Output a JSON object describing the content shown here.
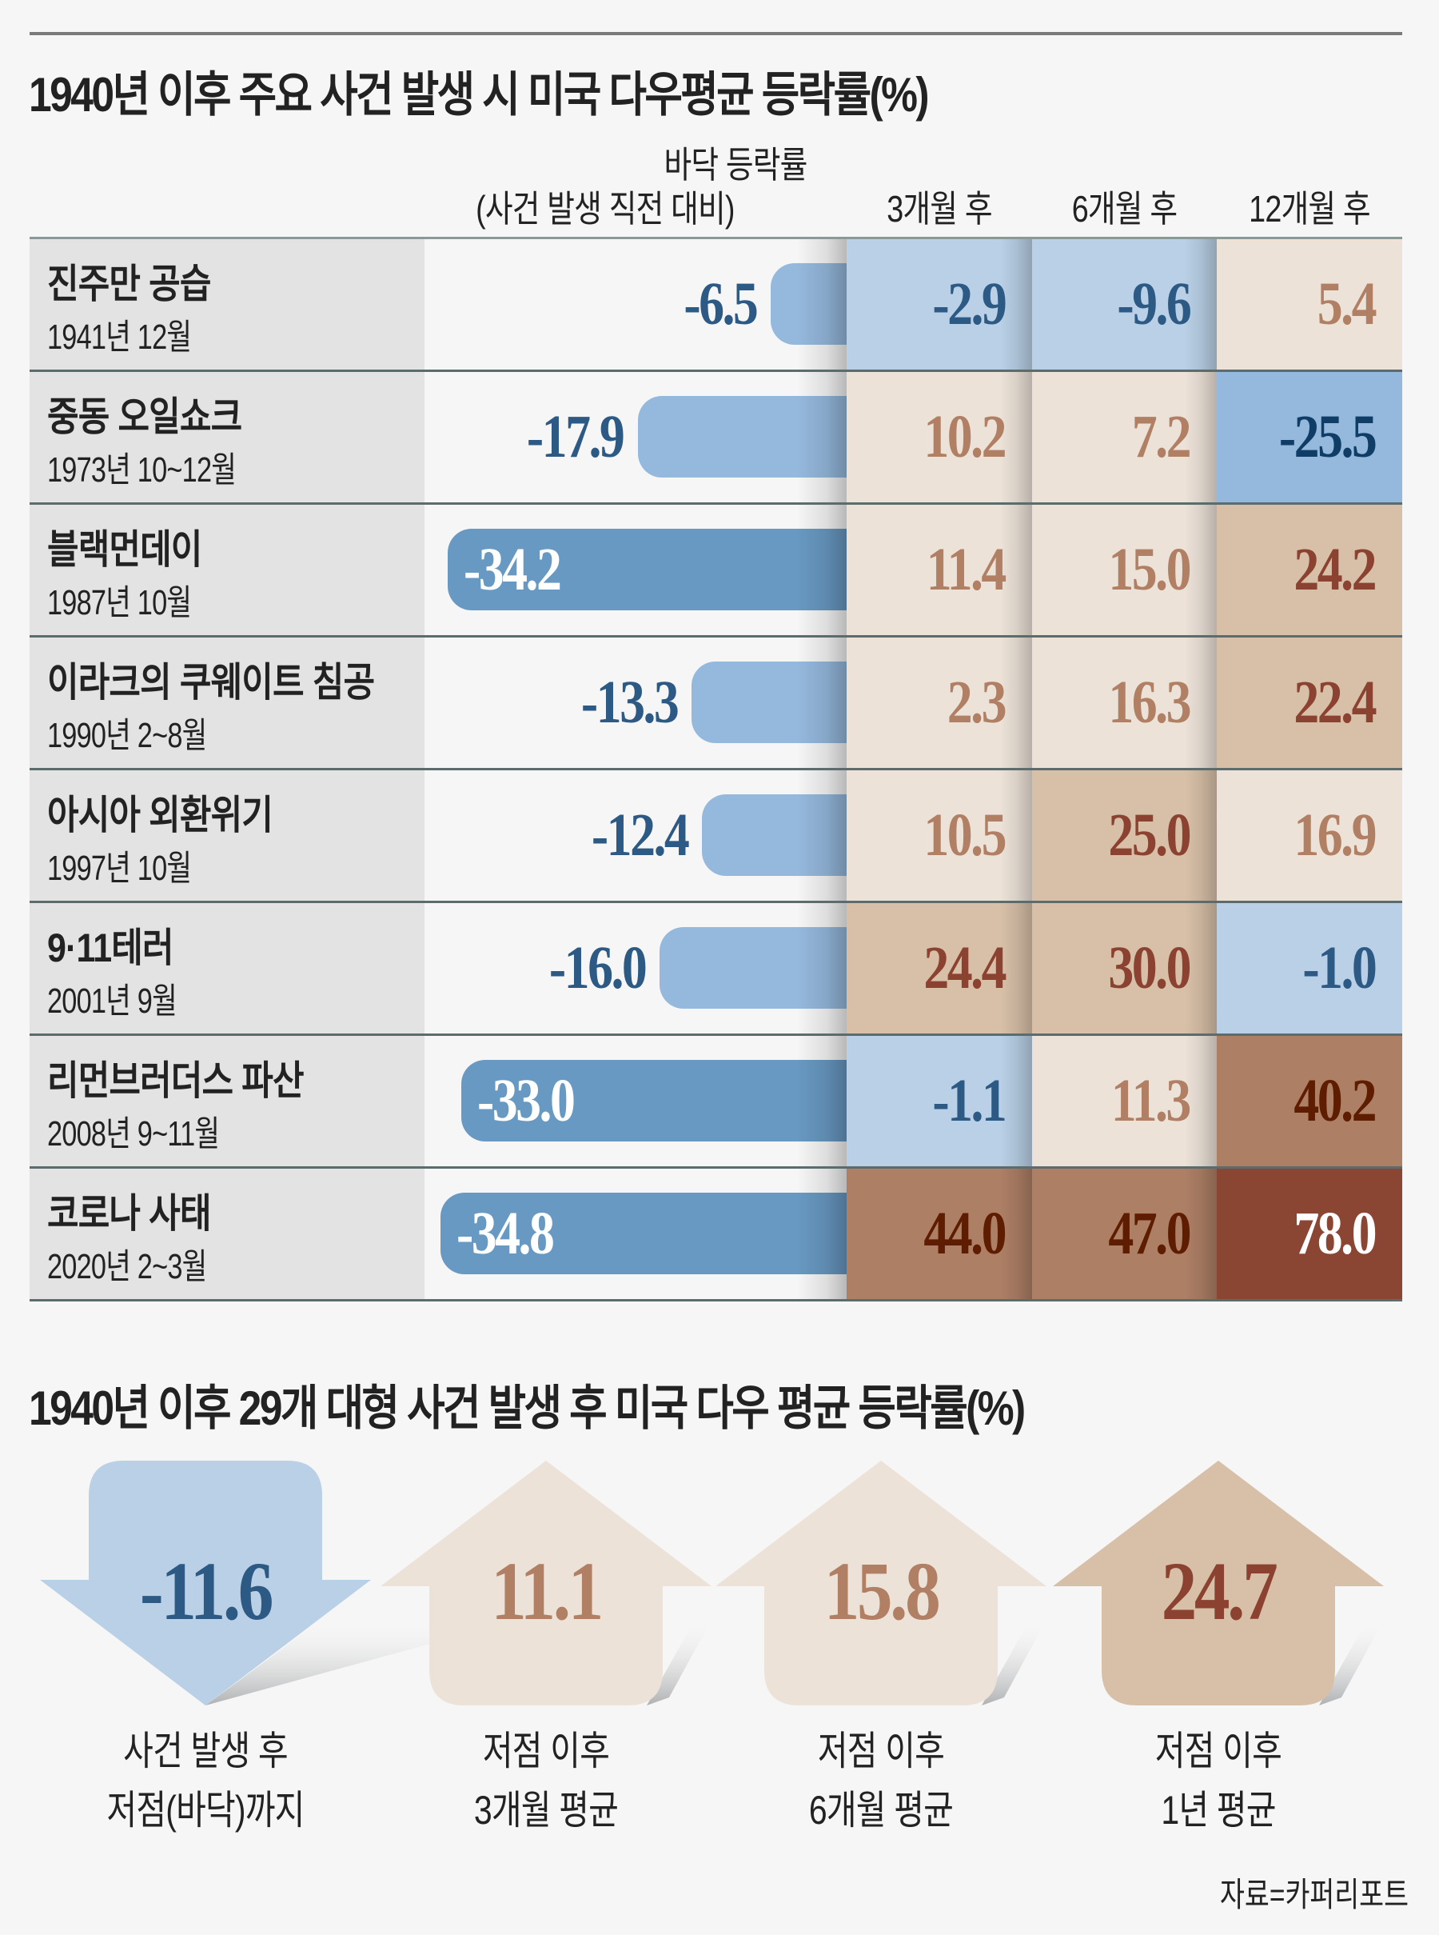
{
  "title": "1940년 이후 주요 사건 발생 시 미국 다우평균 등락률(%)",
  "header": {
    "bottom_label_line1": "바닥 등락률",
    "bottom_label_line2": "(사건 발생 직전 대비)",
    "col_3m": "3개월 후",
    "col_6m": "6개월 후",
    "col_12m": "12개월 후"
  },
  "palette": {
    "blue_light": "#b9d0e6",
    "blue_mid": "#95b9dd",
    "blue_bar_light": "#95b9dd",
    "blue_bar_dark": "#6899c2",
    "beige_light": "#ece2d8",
    "beige_mid": "#d8c0a8",
    "brown": "#ad7f65",
    "brown_dark": "#8a4633",
    "text_blue": "#2c5a85",
    "text_blue_dark": "#0f3d66",
    "text_beige": "#b07f64",
    "text_brown": "#8b4230",
    "text_brown_dark": "#5e1c00",
    "text_white": "#ffffff"
  },
  "chart_data": {
    "type": "table",
    "title": "1940년 이후 주요 사건 발생 시 미국 다우평균 등락률(%)",
    "columns": [
      "바닥 등락률 (사건 발생 직전 대비)",
      "3개월 후",
      "6개월 후",
      "12개월 후"
    ],
    "bar_range": [
      -40,
      0
    ],
    "rows": [
      {
        "event": "진주만 공습",
        "date": "1941년 12월",
        "bottom": -6.5,
        "bottom_label": "-6.5",
        "cells": [
          {
            "v": "-2.9",
            "bg": "blue_light",
            "fg": "text_blue"
          },
          {
            "v": "-9.6",
            "bg": "blue_light",
            "fg": "text_blue"
          },
          {
            "v": "5.4",
            "bg": "beige_light",
            "fg": "text_beige"
          }
        ]
      },
      {
        "event": "중동 오일쇼크",
        "date": "1973년 10~12월",
        "bottom": -17.9,
        "bottom_label": "-17.9",
        "cells": [
          {
            "v": "10.2",
            "bg": "beige_light",
            "fg": "text_beige"
          },
          {
            "v": "7.2",
            "bg": "beige_light",
            "fg": "text_beige"
          },
          {
            "v": "-25.5",
            "bg": "blue_mid",
            "fg": "text_blue_dark"
          }
        ]
      },
      {
        "event": "블랙먼데이",
        "date": "1987년 10월",
        "bottom": -34.2,
        "bottom_label": "-34.2",
        "cells": [
          {
            "v": "11.4",
            "bg": "beige_light",
            "fg": "text_beige"
          },
          {
            "v": "15.0",
            "bg": "beige_light",
            "fg": "text_beige"
          },
          {
            "v": "24.2",
            "bg": "beige_mid",
            "fg": "text_brown"
          }
        ]
      },
      {
        "event": "이라크의 쿠웨이트 침공",
        "date": "1990년 2~8월",
        "bottom": -13.3,
        "bottom_label": "-13.3",
        "cells": [
          {
            "v": "2.3",
            "bg": "beige_light",
            "fg": "text_beige"
          },
          {
            "v": "16.3",
            "bg": "beige_light",
            "fg": "text_beige"
          },
          {
            "v": "22.4",
            "bg": "beige_mid",
            "fg": "text_brown"
          }
        ]
      },
      {
        "event": "아시아 외환위기",
        "date": "1997년 10월",
        "bottom": -12.4,
        "bottom_label": "-12.4",
        "cells": [
          {
            "v": "10.5",
            "bg": "beige_light",
            "fg": "text_beige"
          },
          {
            "v": "25.0",
            "bg": "beige_mid",
            "fg": "text_brown"
          },
          {
            "v": "16.9",
            "bg": "beige_light",
            "fg": "text_beige"
          }
        ]
      },
      {
        "event": "9·11테러",
        "date": "2001년 9월",
        "bottom": -16.0,
        "bottom_label": "-16.0",
        "cells": [
          {
            "v": "24.4",
            "bg": "beige_mid",
            "fg": "text_brown"
          },
          {
            "v": "30.0",
            "bg": "beige_mid",
            "fg": "text_brown"
          },
          {
            "v": "-1.0",
            "bg": "blue_light",
            "fg": "text_blue"
          }
        ]
      },
      {
        "event": "리먼브러더스 파산",
        "date": "2008년 9~11월",
        "bottom": -33.0,
        "bottom_label": "-33.0",
        "cells": [
          {
            "v": "-1.1",
            "bg": "blue_light",
            "fg": "text_blue"
          },
          {
            "v": "11.3",
            "bg": "beige_light",
            "fg": "text_beige"
          },
          {
            "v": "40.2",
            "bg": "brown",
            "fg": "text_brown_dark"
          }
        ]
      },
      {
        "event": "코로나 사태",
        "date": "2020년 2~3월",
        "bottom": -34.8,
        "bottom_label": "-34.8",
        "cells": [
          {
            "v": "44.0",
            "bg": "brown",
            "fg": "text_brown_dark"
          },
          {
            "v": "47.0",
            "bg": "brown",
            "fg": "text_brown_dark"
          },
          {
            "v": "78.0",
            "bg": "brown_dark",
            "fg": "text_white"
          }
        ]
      }
    ],
    "summary": {
      "title": "1940년 이후 29개 대형 사건 발생 후 미국 다우 평균 등락률(%)",
      "items": [
        {
          "value": -11.6,
          "label": "-11.6",
          "direction": "down",
          "caption1": "사건 발생 후",
          "caption2": "저점(바닥)까지",
          "bg": "blue_light",
          "fg": "text_blue"
        },
        {
          "value": 11.1,
          "label": "11.1",
          "direction": "up",
          "caption1": "저점 이후",
          "caption2": "3개월 평균",
          "bg": "beige_light",
          "fg": "text_beige"
        },
        {
          "value": 15.8,
          "label": "15.8",
          "direction": "up",
          "caption1": "저점 이후",
          "caption2": "6개월 평균",
          "bg": "beige_light",
          "fg": "text_beige"
        },
        {
          "value": 24.7,
          "label": "24.7",
          "direction": "up",
          "caption1": "저점 이후",
          "caption2": "1년 평균",
          "bg": "beige_mid",
          "fg": "text_brown"
        }
      ]
    }
  },
  "summary_title": "1940년 이후 29개 대형 사건 발생 후 미국 다우 평균 등락률(%)",
  "source": "자료=카퍼리포트"
}
